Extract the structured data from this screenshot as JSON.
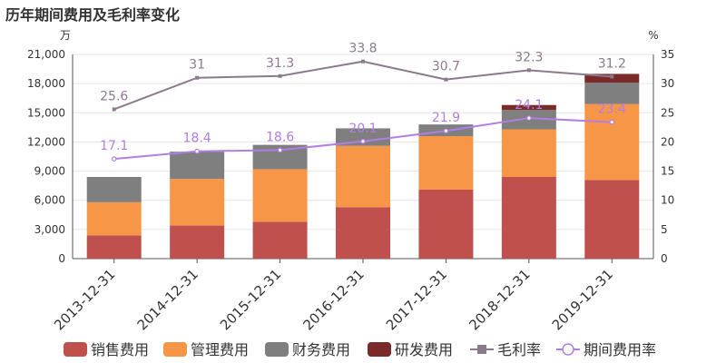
{
  "chart_data": {
    "type": "bar",
    "title": "历年期间费用及毛利率变化",
    "left_unit": "万",
    "right_unit": "%",
    "categories": [
      "2013-12-31",
      "2014-12-31",
      "2015-12-31",
      "2016-12-31",
      "2017-12-31",
      "2018-12-31",
      "2019-12-31"
    ],
    "y_left": {
      "min": 0,
      "max": 21000,
      "ticks": [
        "0",
        "3,000",
        "6,000",
        "9,000",
        "12,000",
        "15,000",
        "18,000",
        "21,000"
      ]
    },
    "y_right": {
      "min": 0,
      "max": 35,
      "ticks": [
        "0",
        "5",
        "10",
        "15",
        "20",
        "25",
        "30",
        "35"
      ]
    },
    "grid": true,
    "legend_position": "bottom",
    "series": [
      {
        "name": "销售费用",
        "type": "bar",
        "axis": "left",
        "color": "#c0504d",
        "values": [
          2400,
          3400,
          3800,
          5300,
          7100,
          8400,
          8100
        ]
      },
      {
        "name": "管理费用",
        "type": "bar",
        "axis": "left",
        "color": "#f79646",
        "values": [
          3400,
          4800,
          5400,
          6300,
          5500,
          4900,
          7800
        ]
      },
      {
        "name": "财务费用",
        "type": "bar",
        "axis": "left",
        "color": "#7f7f7f",
        "values": [
          2600,
          2800,
          2500,
          1800,
          1200,
          2000,
          2200
        ]
      },
      {
        "name": "研发费用",
        "type": "bar",
        "axis": "left",
        "color": "#7b2a2a",
        "values": [
          0,
          0,
          0,
          0,
          0,
          500,
          900
        ]
      },
      {
        "name": "毛利率",
        "type": "line",
        "axis": "right",
        "color": "#8c7a8c",
        "values": [
          25.6,
          31,
          31.3,
          33.8,
          30.7,
          32.3,
          31.2
        ],
        "labels": [
          "25.6",
          "31",
          "31.3",
          "33.8",
          "30.7",
          "32.3",
          "31.2"
        ]
      },
      {
        "name": "期间费用率",
        "type": "line",
        "axis": "right",
        "color": "#b27ee6",
        "values": [
          17.1,
          18.4,
          18.6,
          20.1,
          21.9,
          24.1,
          23.4
        ],
        "labels": [
          "17.1",
          "18.4",
          "18.6",
          "20.1",
          "21.9",
          "24.1",
          "23.4"
        ]
      }
    ]
  }
}
